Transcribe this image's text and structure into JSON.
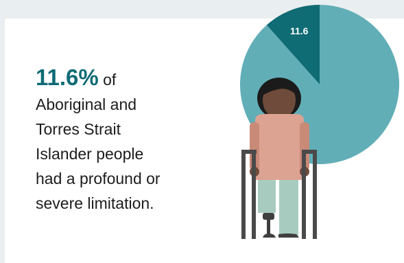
{
  "chart_data": {
    "type": "pie",
    "values": [
      11.6,
      88.4
    ],
    "slice_labels": [
      "11.6",
      ""
    ],
    "colors": [
      "#0f6b74",
      "#61aeb7"
    ]
  },
  "stat": {
    "value": "11.6%",
    "suffix": "of",
    "lines": [
      "Aboriginal and",
      "Torres Strait",
      "Islander people",
      "had a profound or",
      "severe limitation."
    ]
  },
  "colors": {
    "accent": "#0f6b74",
    "pie_main": "#61aeb7",
    "background": "#e9eef0",
    "card": "#ffffff"
  },
  "illustration": {
    "icon": "person-with-walking-frame-icon"
  }
}
